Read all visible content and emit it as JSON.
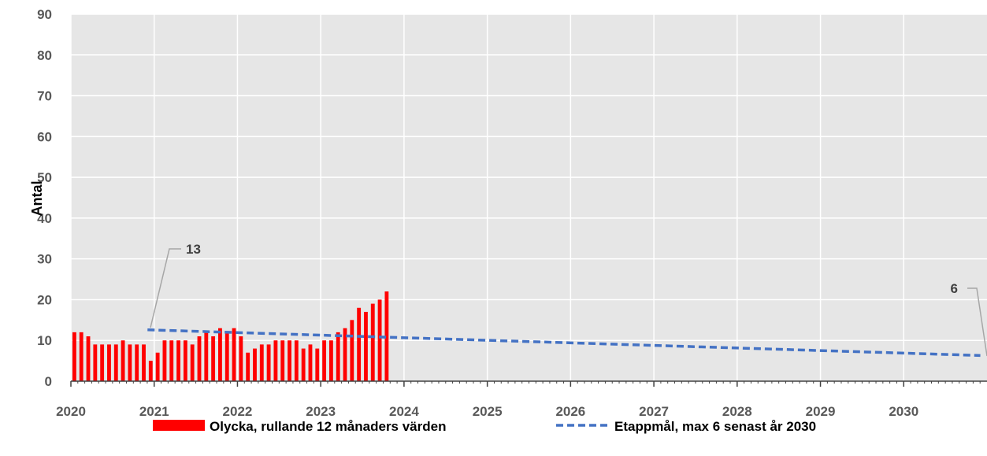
{
  "chart_data": {
    "type": "bar",
    "ylabel": "Antal",
    "ylim": [
      0,
      90
    ],
    "yticks": [
      "0",
      "10",
      "20",
      "30",
      "40",
      "50",
      "60",
      "70",
      "80",
      "90"
    ],
    "xlim": [
      2020,
      2031
    ],
    "xticks": [
      "2020",
      "2021",
      "2022",
      "2023",
      "2024",
      "2025",
      "2026",
      "2027",
      "2028",
      "2029",
      "2030"
    ],
    "grid": true,
    "legend_placement": "bottom",
    "series": [
      {
        "name": "Olycka, rullande 12 månaders värden",
        "type": "bar",
        "color": "#ff0000",
        "start": "2020-01",
        "values": [
          12,
          12,
          11,
          9,
          9,
          9,
          9,
          10,
          9,
          9,
          9,
          5,
          7,
          10,
          10,
          10,
          10,
          9,
          11,
          12,
          11,
          13,
          12,
          13,
          11,
          7,
          8,
          9,
          9,
          10,
          10,
          10,
          10,
          8,
          9,
          8,
          10,
          10,
          12,
          13,
          15,
          18,
          17,
          19,
          20,
          22
        ]
      },
      {
        "name": "Etappmål, max 6 senast år 2030",
        "type": "line",
        "style": "dashed",
        "color": "#4472c4",
        "x": [
          2020.92,
          2030.92
        ],
        "y": [
          12.6,
          6.3
        ]
      }
    ],
    "annotations": [
      {
        "text": "13"
      },
      {
        "text": "6"
      }
    ]
  }
}
